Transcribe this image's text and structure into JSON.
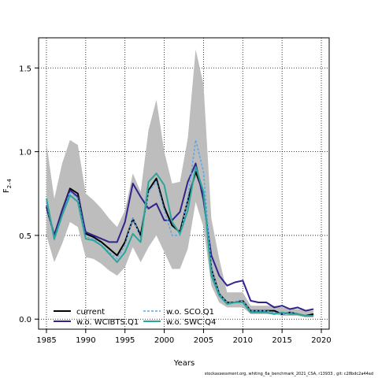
{
  "chart_data": {
    "type": "line",
    "ylabel": "F",
    "ylabel_sub": "2–4",
    "xlabel": "Years",
    "xlim": [
      1984,
      2021
    ],
    "ylim": [
      -0.06,
      1.68
    ],
    "x_ticks": [
      1985,
      1990,
      1995,
      2000,
      2005,
      2010,
      2015,
      2020
    ],
    "y_ticks": [
      0.0,
      0.5,
      1.0,
      1.5
    ],
    "y_tick_labels": [
      "0.0",
      "0.5",
      "1.0",
      "1.5"
    ],
    "grid": "dotted",
    "legend_position": "bottom-left",
    "x": [
      1985,
      1986,
      1987,
      1988,
      1989,
      1990,
      1991,
      1992,
      1993,
      1994,
      1995,
      1996,
      1997,
      1998,
      1999,
      2000,
      2001,
      2002,
      2003,
      2004,
      2005,
      2006,
      2007,
      2008,
      2009,
      2010,
      2011,
      2012,
      2013,
      2014,
      2015,
      2016,
      2017,
      2018,
      2019
    ],
    "band": {
      "lower": [
        0.5,
        0.34,
        0.45,
        0.58,
        0.55,
        0.37,
        0.36,
        0.33,
        0.29,
        0.26,
        0.31,
        0.43,
        0.34,
        0.43,
        0.5,
        0.4,
        0.3,
        0.3,
        0.42,
        0.7,
        0.55,
        0.2,
        0.1,
        0.07,
        0.07,
        0.07,
        0.03,
        0.03,
        0.03,
        0.03,
        0.02,
        0.02,
        0.02,
        0.01,
        0.01
      ],
      "upper": [
        1.05,
        0.72,
        0.93,
        1.07,
        1.04,
        0.75,
        0.71,
        0.66,
        0.6,
        0.55,
        0.65,
        0.87,
        0.76,
        1.13,
        1.31,
        1.0,
        0.81,
        0.82,
        1.08,
        1.61,
        1.4,
        0.6,
        0.36,
        0.16,
        0.16,
        0.16,
        0.08,
        0.08,
        0.08,
        0.08,
        0.07,
        0.06,
        0.06,
        0.05,
        0.05
      ]
    },
    "series": [
      {
        "name": "current",
        "color": "#000000",
        "dash": "solid",
        "values": [
          0.67,
          0.5,
          0.65,
          0.78,
          0.75,
          0.51,
          0.49,
          0.46,
          0.42,
          0.38,
          0.46,
          0.6,
          0.5,
          0.77,
          0.84,
          0.67,
          0.56,
          0.52,
          0.71,
          0.88,
          0.75,
          0.3,
          0.15,
          0.1,
          0.1,
          0.11,
          0.05,
          0.05,
          0.05,
          0.05,
          0.03,
          0.04,
          0.03,
          0.02,
          0.03
        ]
      },
      {
        "name": "w.o. WCIBTS.Q1",
        "color": "#31248c",
        "dash": "solid",
        "values": [
          0.68,
          0.5,
          0.65,
          0.77,
          0.73,
          0.52,
          0.5,
          0.48,
          0.46,
          0.46,
          0.58,
          0.81,
          0.73,
          0.66,
          0.69,
          0.59,
          0.59,
          0.64,
          0.82,
          0.93,
          0.71,
          0.38,
          0.26,
          0.2,
          0.22,
          0.23,
          0.11,
          0.1,
          0.1,
          0.07,
          0.08,
          0.06,
          0.07,
          0.05,
          0.06
        ]
      },
      {
        "name": "w.o. SCO.Q1",
        "color": "#5aa7ea",
        "dash": "dashed",
        "values": [
          0.7,
          0.47,
          0.62,
          0.76,
          0.72,
          0.49,
          0.48,
          0.44,
          0.4,
          0.36,
          0.44,
          0.61,
          0.48,
          0.76,
          0.82,
          0.65,
          0.5,
          0.5,
          0.72,
          1.07,
          0.88,
          0.3,
          0.15,
          0.1,
          0.1,
          0.11,
          0.05,
          0.05,
          0.05,
          0.04,
          0.03,
          0.04,
          0.03,
          0.02,
          0.02
        ]
      },
      {
        "name": "w.o. SWC.Q4",
        "color": "#2aa69a",
        "dash": "solid",
        "values": [
          0.72,
          0.48,
          0.62,
          0.74,
          0.7,
          0.48,
          0.47,
          0.44,
          0.39,
          0.34,
          0.4,
          0.51,
          0.46,
          0.82,
          0.87,
          0.8,
          0.58,
          0.51,
          0.65,
          0.91,
          0.76,
          0.26,
          0.14,
          0.09,
          0.1,
          0.1,
          0.04,
          0.04,
          0.04,
          0.03,
          0.04,
          0.03,
          0.03,
          0.02,
          0.02
        ]
      }
    ]
  },
  "footer": "stockassessment.org, whiting_6a_benchmark_2021_CSA, r13933 , git: c28bdc2a44ad"
}
